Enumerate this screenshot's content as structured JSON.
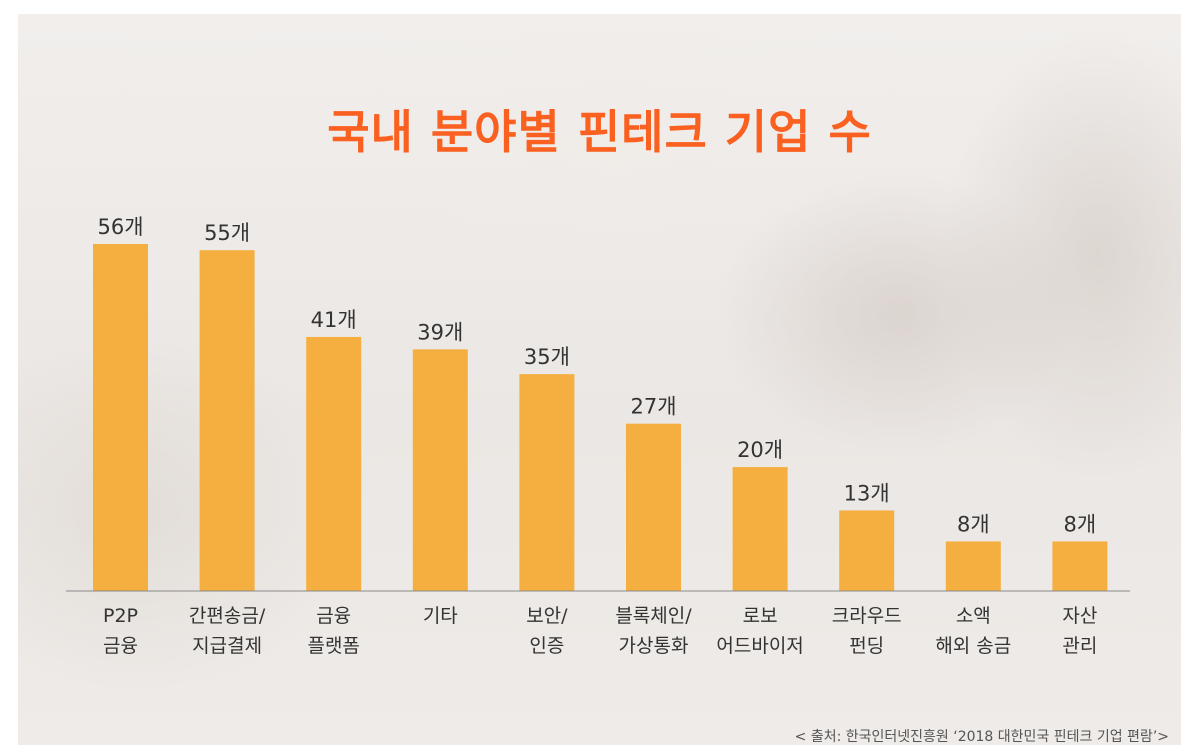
{
  "chart_data": {
    "type": "bar",
    "title": "국내 분야별 핀테크 기업 수",
    "categories": [
      [
        "P2P",
        "금융"
      ],
      [
        "간편송금/",
        "지급결제"
      ],
      [
        "금융",
        "플랫폼"
      ],
      [
        "기타"
      ],
      [
        "보안/",
        "인증"
      ],
      [
        "블록체인/",
        "가상통화"
      ],
      [
        "로보",
        "어드바이저"
      ],
      [
        "크라우드",
        "펀딩"
      ],
      [
        "소액",
        "해외 송금"
      ],
      [
        "자산",
        "관리"
      ]
    ],
    "values": [
      56,
      55,
      41,
      39,
      35,
      27,
      20,
      13,
      8,
      8
    ],
    "value_labels": [
      "56개",
      "55개",
      "41개",
      "39개",
      "35개",
      "27개",
      "20개",
      "13개",
      "8개",
      "8개"
    ],
    "ylim": [
      0,
      56
    ],
    "grid": false,
    "colors": {
      "bar": "#f5ae40",
      "title": "#fa6020",
      "text": "#333333",
      "axis": "#8a8a8a"
    }
  },
  "source": "< 출처: 한국인터넷진흥원 ‘2018 대한민국 핀테크 기업 편람’>"
}
